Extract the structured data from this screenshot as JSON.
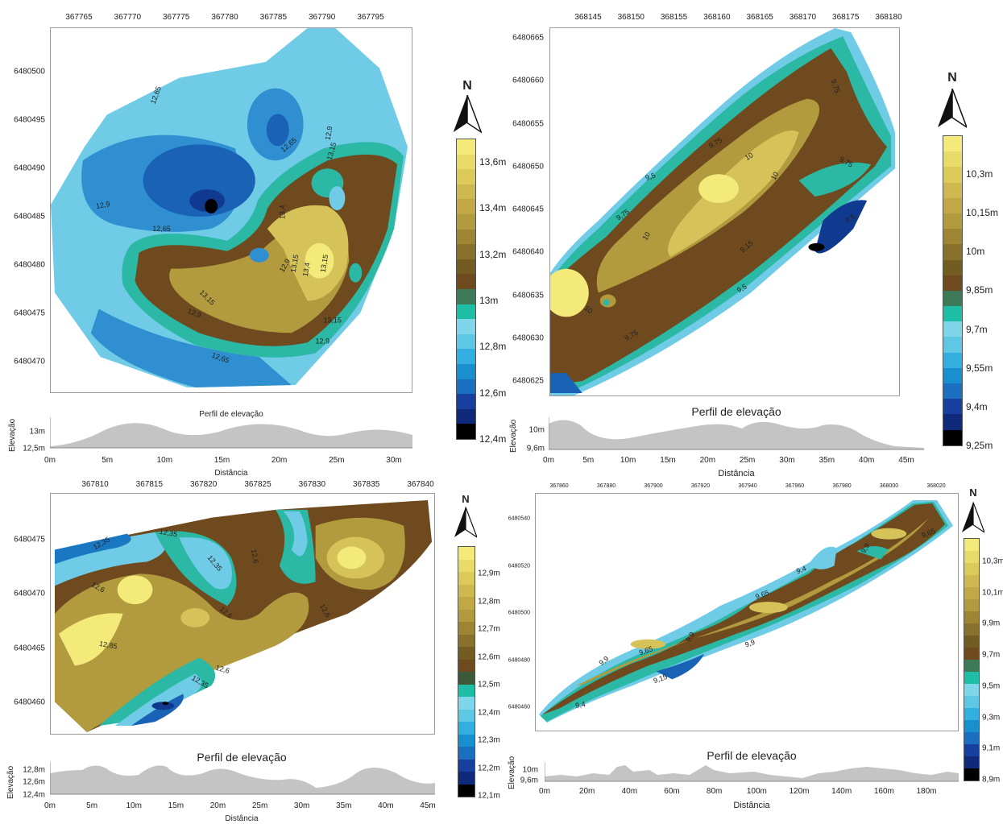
{
  "panels": [
    {
      "x_ticks": [
        "367765",
        "367770",
        "367775",
        "367780",
        "367785",
        "367790",
        "367795"
      ],
      "y_ticks": [
        "6480500",
        "6480495",
        "6480490",
        "6480485",
        "6480480",
        "6480475",
        "6480470"
      ],
      "contour_labels": [
        "12,65",
        "12,65",
        "12,9",
        "12,9",
        "12,65",
        "13,4",
        "13,15",
        "12,9",
        "13,15",
        "13,15",
        "13,4",
        "13,15",
        "12,9",
        "13,15",
        "12,9",
        "12,65"
      ],
      "colorbar_labels": [
        "13,6m",
        "13,4m",
        "13,2m",
        "13m",
        "12,8m",
        "12,6m",
        "12,4m"
      ],
      "north": "N",
      "profile": {
        "title": "Perfil de elevação",
        "ylabel": "Elevação",
        "xlabel": "Distância",
        "y_ticks": [
          "13m",
          "12,5m"
        ],
        "x_ticks": [
          "0m",
          "5m",
          "10m",
          "15m",
          "20m",
          "25m",
          "30m"
        ]
      }
    },
    {
      "x_ticks": [
        "368145",
        "368150",
        "368155",
        "368160",
        "368165",
        "368170",
        "368175",
        "368180"
      ],
      "y_ticks": [
        "6480665",
        "6480660",
        "6480655",
        "6480650",
        "6480645",
        "6480640",
        "6480635",
        "6480630",
        "6480625"
      ],
      "contour_labels": [
        "9,75",
        "9,75",
        "10",
        "10",
        "9,75",
        "9,5",
        "9,75",
        "10",
        "9,15",
        "9,5",
        "9,5",
        "10",
        "9,75"
      ],
      "colorbar_labels": [
        "10,3m",
        "10,15m",
        "10m",
        "9,85m",
        "9,7m",
        "9,55m",
        "9,4m",
        "9,25m"
      ],
      "north": "N",
      "profile": {
        "title": "Perfil de elevação",
        "ylabel": "Elevação",
        "xlabel": "Distância",
        "y_ticks": [
          "10m",
          "9,6m"
        ],
        "x_ticks": [
          "0m",
          "5m",
          "10m",
          "15m",
          "20m",
          "25m",
          "30m",
          "35m",
          "40m",
          "45m"
        ]
      }
    },
    {
      "x_ticks": [
        "367810",
        "367815",
        "367820",
        "367825",
        "367830",
        "367835",
        "367840"
      ],
      "y_ticks": [
        "6480475",
        "6480470",
        "6480465",
        "6480460"
      ],
      "contour_labels": [
        "12,35",
        "12,35",
        "12,35",
        "12,6",
        "12,6",
        "12,6",
        "12,6",
        "12,85",
        "12,6",
        "12,35"
      ],
      "colorbar_labels": [
        "12,9m",
        "12,8m",
        "12,7m",
        "12,6m",
        "12,5m",
        "12,4m",
        "12,3m",
        "12,2m",
        "12,1m"
      ],
      "north": "N",
      "profile": {
        "title": "Perfil de elevação",
        "ylabel": "Elevação",
        "xlabel": "Distância",
        "y_ticks": [
          "12,8m",
          "12,6m",
          "12,4m"
        ],
        "x_ticks": [
          "0m",
          "5m",
          "10m",
          "15m",
          "20m",
          "25m",
          "30m",
          "35m",
          "40m",
          "45m"
        ]
      }
    },
    {
      "x_ticks": [
        "367860",
        "367880",
        "367900",
        "367920",
        "367940",
        "367960",
        "367980",
        "368000",
        "368020"
      ],
      "y_ticks": [
        "6480540",
        "6480520",
        "6480500",
        "6480480",
        "6480460"
      ],
      "contour_labels": [
        "9,65",
        "9,9",
        "9,4",
        "9,65",
        "9,9",
        "9,65",
        "9,9",
        "9,9",
        "9,15",
        "9,4"
      ],
      "colorbar_labels": [
        "10,3m",
        "10,1m",
        "9,9m",
        "9,7m",
        "9,5m",
        "9,3m",
        "9,1m",
        "8,9m"
      ],
      "north": "N",
      "profile": {
        "title": "Perfil de elevação",
        "ylabel": "Elevação",
        "xlabel": "Distância",
        "y_ticks": [
          "10m",
          "9,6m"
        ],
        "x_ticks": [
          "0m",
          "20m",
          "40m",
          "60m",
          "80m",
          "100m",
          "120m",
          "140m",
          "160m",
          "180m"
        ]
      }
    }
  ],
  "palette": {
    "yellow": "#f3ea7a",
    "olive": "#b29a3e",
    "brown": "#6e4a1e",
    "teal": "#2bb8a5",
    "cyan": "#7fd6ea",
    "blue": "#1a78c2",
    "dark_blue": "#10328a",
    "black": "#000000",
    "profile_fill": "#c4c4c4"
  }
}
